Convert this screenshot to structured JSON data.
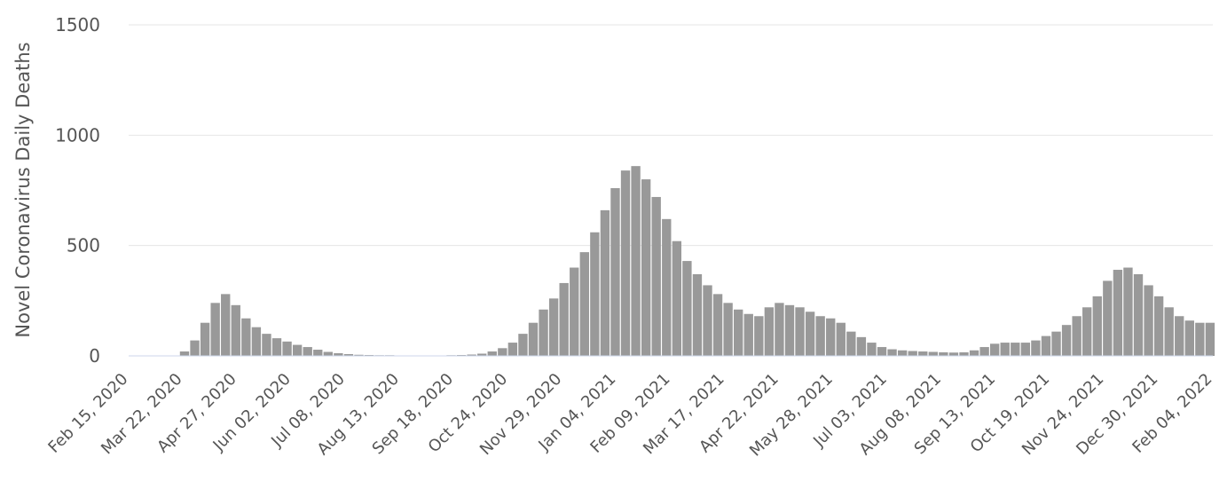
{
  "chart_data": {
    "type": "bar",
    "title": "",
    "xlabel": "",
    "ylabel": "Novel Coronavirus Daily Deaths",
    "ylim": [
      0,
      1500
    ],
    "yticks": [
      0,
      500,
      1000,
      1500
    ],
    "grid": true,
    "legend": "none",
    "bar_color": "#999999",
    "x_start": "2020-02-15",
    "x_end": "2022-02-24",
    "xtick_labels": [
      "Feb 15, 2020",
      "Mar 22, 2020",
      "Apr 27, 2020",
      "Jun 02, 2020",
      "Jul 08, 2020",
      "Aug 13, 2020",
      "Sep 18, 2020",
      "Oct 24, 2020",
      "Nov 29, 2020",
      "Jan 04, 2021",
      "Feb 09, 2021",
      "Mar 17, 2021",
      "Apr 22, 2021",
      "May 28, 2021",
      "Jul 03, 2021",
      "Aug 08, 2021",
      "Sep 13, 2021",
      "Oct 19, 2021",
      "Nov 24, 2021",
      "Dec 30, 2021",
      "Feb 04, 2022"
    ],
    "weekly_avg_daily_deaths": [
      {
        "week_of": "2020-02-15",
        "value": 0
      },
      {
        "week_of": "2020-02-22",
        "value": 0
      },
      {
        "week_of": "2020-02-29",
        "value": 0
      },
      {
        "week_of": "2020-03-07",
        "value": 0
      },
      {
        "week_of": "2020-03-14",
        "value": 2
      },
      {
        "week_of": "2020-03-21",
        "value": 20
      },
      {
        "week_of": "2020-03-28",
        "value": 70
      },
      {
        "week_of": "2020-04-04",
        "value": 150
      },
      {
        "week_of": "2020-04-11",
        "value": 240
      },
      {
        "week_of": "2020-04-18",
        "value": 280
      },
      {
        "week_of": "2020-04-25",
        "value": 230
      },
      {
        "week_of": "2020-05-02",
        "value": 170
      },
      {
        "week_of": "2020-05-09",
        "value": 130
      },
      {
        "week_of": "2020-05-16",
        "value": 100
      },
      {
        "week_of": "2020-05-23",
        "value": 80
      },
      {
        "week_of": "2020-05-30",
        "value": 65
      },
      {
        "week_of": "2020-06-06",
        "value": 50
      },
      {
        "week_of": "2020-06-13",
        "value": 40
      },
      {
        "week_of": "2020-06-20",
        "value": 28
      },
      {
        "week_of": "2020-06-27",
        "value": 18
      },
      {
        "week_of": "2020-07-04",
        "value": 12
      },
      {
        "week_of": "2020-07-11",
        "value": 8
      },
      {
        "week_of": "2020-07-18",
        "value": 5
      },
      {
        "week_of": "2020-07-25",
        "value": 4
      },
      {
        "week_of": "2020-08-01",
        "value": 3
      },
      {
        "week_of": "2020-08-08",
        "value": 3
      },
      {
        "week_of": "2020-08-15",
        "value": 2
      },
      {
        "week_of": "2020-08-22",
        "value": 2
      },
      {
        "week_of": "2020-08-29",
        "value": 2
      },
      {
        "week_of": "2020-09-05",
        "value": 2
      },
      {
        "week_of": "2020-09-12",
        "value": 2
      },
      {
        "week_of": "2020-09-19",
        "value": 3
      },
      {
        "week_of": "2020-09-26",
        "value": 4
      },
      {
        "week_of": "2020-10-03",
        "value": 6
      },
      {
        "week_of": "2020-10-10",
        "value": 10
      },
      {
        "week_of": "2020-10-17",
        "value": 20
      },
      {
        "week_of": "2020-10-24",
        "value": 35
      },
      {
        "week_of": "2020-10-31",
        "value": 60
      },
      {
        "week_of": "2020-11-07",
        "value": 100
      },
      {
        "week_of": "2020-11-14",
        "value": 150
      },
      {
        "week_of": "2020-11-21",
        "value": 210
      },
      {
        "week_of": "2020-11-28",
        "value": 260
      },
      {
        "week_of": "2020-12-05",
        "value": 330
      },
      {
        "week_of": "2020-12-12",
        "value": 400
      },
      {
        "week_of": "2020-12-19",
        "value": 470
      },
      {
        "week_of": "2020-12-26",
        "value": 560
      },
      {
        "week_of": "2021-01-02",
        "value": 660
      },
      {
        "week_of": "2021-01-09",
        "value": 760
      },
      {
        "week_of": "2021-01-16",
        "value": 840
      },
      {
        "week_of": "2021-01-23",
        "value": 860
      },
      {
        "week_of": "2021-01-30",
        "value": 800
      },
      {
        "week_of": "2021-02-06",
        "value": 720
      },
      {
        "week_of": "2021-02-13",
        "value": 620
      },
      {
        "week_of": "2021-02-20",
        "value": 520
      },
      {
        "week_of": "2021-02-27",
        "value": 430
      },
      {
        "week_of": "2021-03-06",
        "value": 370
      },
      {
        "week_of": "2021-03-13",
        "value": 320
      },
      {
        "week_of": "2021-03-20",
        "value": 280
      },
      {
        "week_of": "2021-03-27",
        "value": 240
      },
      {
        "week_of": "2021-04-03",
        "value": 210
      },
      {
        "week_of": "2021-04-10",
        "value": 190
      },
      {
        "week_of": "2021-04-17",
        "value": 180
      },
      {
        "week_of": "2021-04-24",
        "value": 220
      },
      {
        "week_of": "2021-05-01",
        "value": 240
      },
      {
        "week_of": "2021-05-08",
        "value": 230
      },
      {
        "week_of": "2021-05-15",
        "value": 220
      },
      {
        "week_of": "2021-05-22",
        "value": 200
      },
      {
        "week_of": "2021-05-29",
        "value": 180
      },
      {
        "week_of": "2021-06-05",
        "value": 170
      },
      {
        "week_of": "2021-06-12",
        "value": 150
      },
      {
        "week_of": "2021-06-19",
        "value": 110
      },
      {
        "week_of": "2021-06-26",
        "value": 85
      },
      {
        "week_of": "2021-07-03",
        "value": 60
      },
      {
        "week_of": "2021-07-10",
        "value": 40
      },
      {
        "week_of": "2021-07-17",
        "value": 30
      },
      {
        "week_of": "2021-07-24",
        "value": 25
      },
      {
        "week_of": "2021-07-31",
        "value": 22
      },
      {
        "week_of": "2021-08-07",
        "value": 20
      },
      {
        "week_of": "2021-08-14",
        "value": 18
      },
      {
        "week_of": "2021-08-21",
        "value": 16
      },
      {
        "week_of": "2021-08-28",
        "value": 15
      },
      {
        "week_of": "2021-09-04",
        "value": 16
      },
      {
        "week_of": "2021-09-11",
        "value": 25
      },
      {
        "week_of": "2021-09-18",
        "value": 40
      },
      {
        "week_of": "2021-09-25",
        "value": 55
      },
      {
        "week_of": "2021-10-02",
        "value": 60
      },
      {
        "week_of": "2021-10-09",
        "value": 60
      },
      {
        "week_of": "2021-10-16",
        "value": 60
      },
      {
        "week_of": "2021-10-23",
        "value": 70
      },
      {
        "week_of": "2021-10-30",
        "value": 90
      },
      {
        "week_of": "2021-11-06",
        "value": 110
      },
      {
        "week_of": "2021-11-13",
        "value": 140
      },
      {
        "week_of": "2021-11-20",
        "value": 180
      },
      {
        "week_of": "2021-11-27",
        "value": 220
      },
      {
        "week_of": "2021-12-04",
        "value": 270
      },
      {
        "week_of": "2021-12-11",
        "value": 340
      },
      {
        "week_of": "2021-12-18",
        "value": 390
      },
      {
        "week_of": "2021-12-25",
        "value": 400
      },
      {
        "week_of": "2022-01-01",
        "value": 370
      },
      {
        "week_of": "2022-01-08",
        "value": 320
      },
      {
        "week_of": "2022-01-15",
        "value": 270
      },
      {
        "week_of": "2022-01-22",
        "value": 220
      },
      {
        "week_of": "2022-01-29",
        "value": 180
      },
      {
        "week_of": "2022-02-05",
        "value": 160
      },
      {
        "week_of": "2022-02-12",
        "value": 150
      },
      {
        "week_of": "2022-02-19",
        "value": 150
      }
    ]
  }
}
